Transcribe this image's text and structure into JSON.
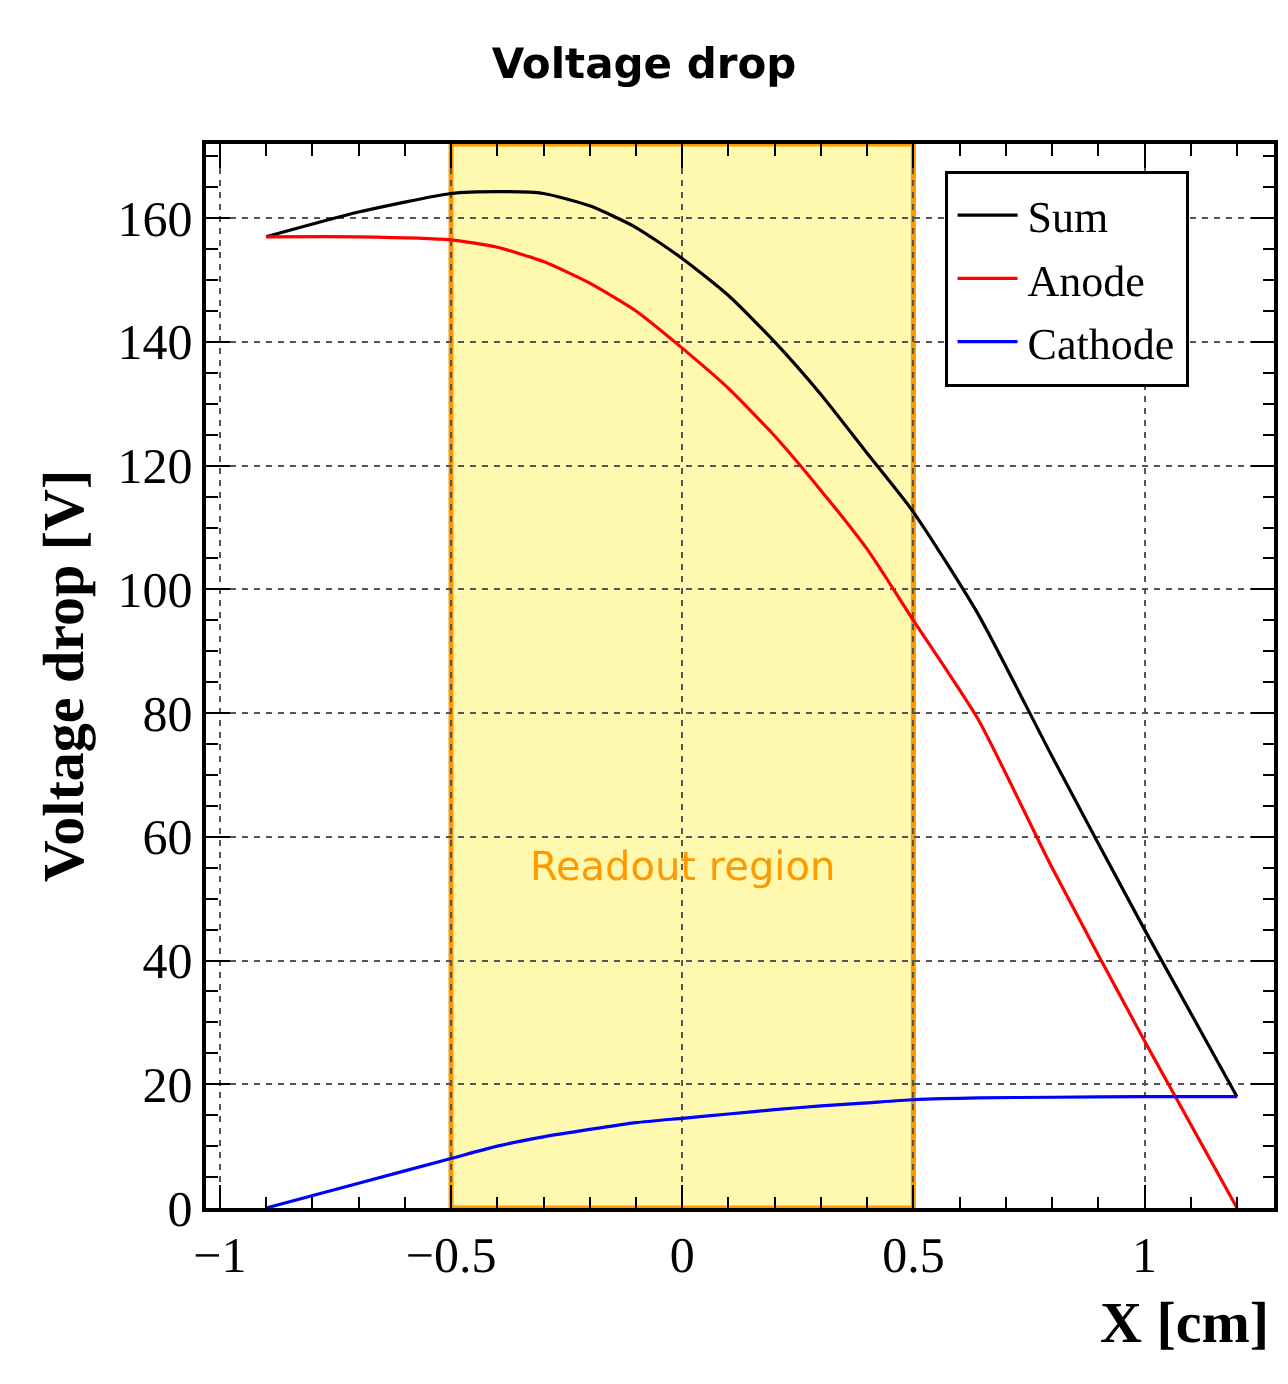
{
  "chart_data": {
    "type": "line",
    "title": "Voltage drop",
    "xlabel": "X [cm]",
    "ylabel": "Voltage drop [V]",
    "xlim": [
      -1.03,
      1.28
    ],
    "ylim": [
      0,
      172
    ],
    "xticks": [
      {
        "value": -1,
        "label": "−1"
      },
      {
        "value": -0.5,
        "label": "−0.5"
      },
      0,
      0.5,
      1
    ],
    "yticks": [
      0,
      20,
      40,
      60,
      80,
      100,
      120,
      140,
      160
    ],
    "grid": true,
    "legend": "top right",
    "line_style": "solid",
    "marker": "none",
    "bands": [
      {
        "axis": "x",
        "from": -0.5,
        "to": 0.5,
        "label": "Readout region",
        "color": "#fff9b0"
      }
    ],
    "series": [
      {
        "name": "Sum",
        "color": "#000000",
        "x": [
          -0.9,
          -0.7,
          -0.5,
          -0.4,
          -0.3,
          -0.2,
          -0.1,
          0,
          0.1,
          0.2,
          0.3,
          0.4,
          0.5,
          0.64,
          0.8,
          1.0,
          1.2
        ],
        "values": [
          157,
          161,
          164,
          164.3,
          164,
          162,
          158.5,
          153.5,
          147.5,
          140,
          131.5,
          122,
          112.5,
          96,
          73,
          45,
          18
        ]
      },
      {
        "name": "Anode",
        "color": "#ff0000",
        "x": [
          -0.9,
          -0.7,
          -0.5,
          -0.4,
          -0.3,
          -0.2,
          -0.1,
          0,
          0.1,
          0.2,
          0.3,
          0.4,
          0.5,
          0.64,
          0.8,
          1.0,
          1.2
        ],
        "values": [
          157,
          157,
          156.5,
          155.3,
          153,
          149.5,
          145,
          139,
          132.5,
          124.8,
          116,
          106.5,
          95,
          79,
          55,
          27,
          0
        ]
      },
      {
        "name": "Cathode",
        "color": "#0000ff",
        "x": [
          -0.9,
          -0.7,
          -0.5,
          -0.4,
          -0.3,
          -0.2,
          -0.1,
          0,
          0.1,
          0.2,
          0.3,
          0.4,
          0.5,
          0.64,
          0.8,
          1.0,
          1.2
        ],
        "values": [
          0,
          4,
          8,
          10,
          11.5,
          12.7,
          13.8,
          14.5,
          15.2,
          15.9,
          16.5,
          17,
          17.5,
          17.8,
          17.9,
          18,
          18
        ]
      }
    ]
  }
}
